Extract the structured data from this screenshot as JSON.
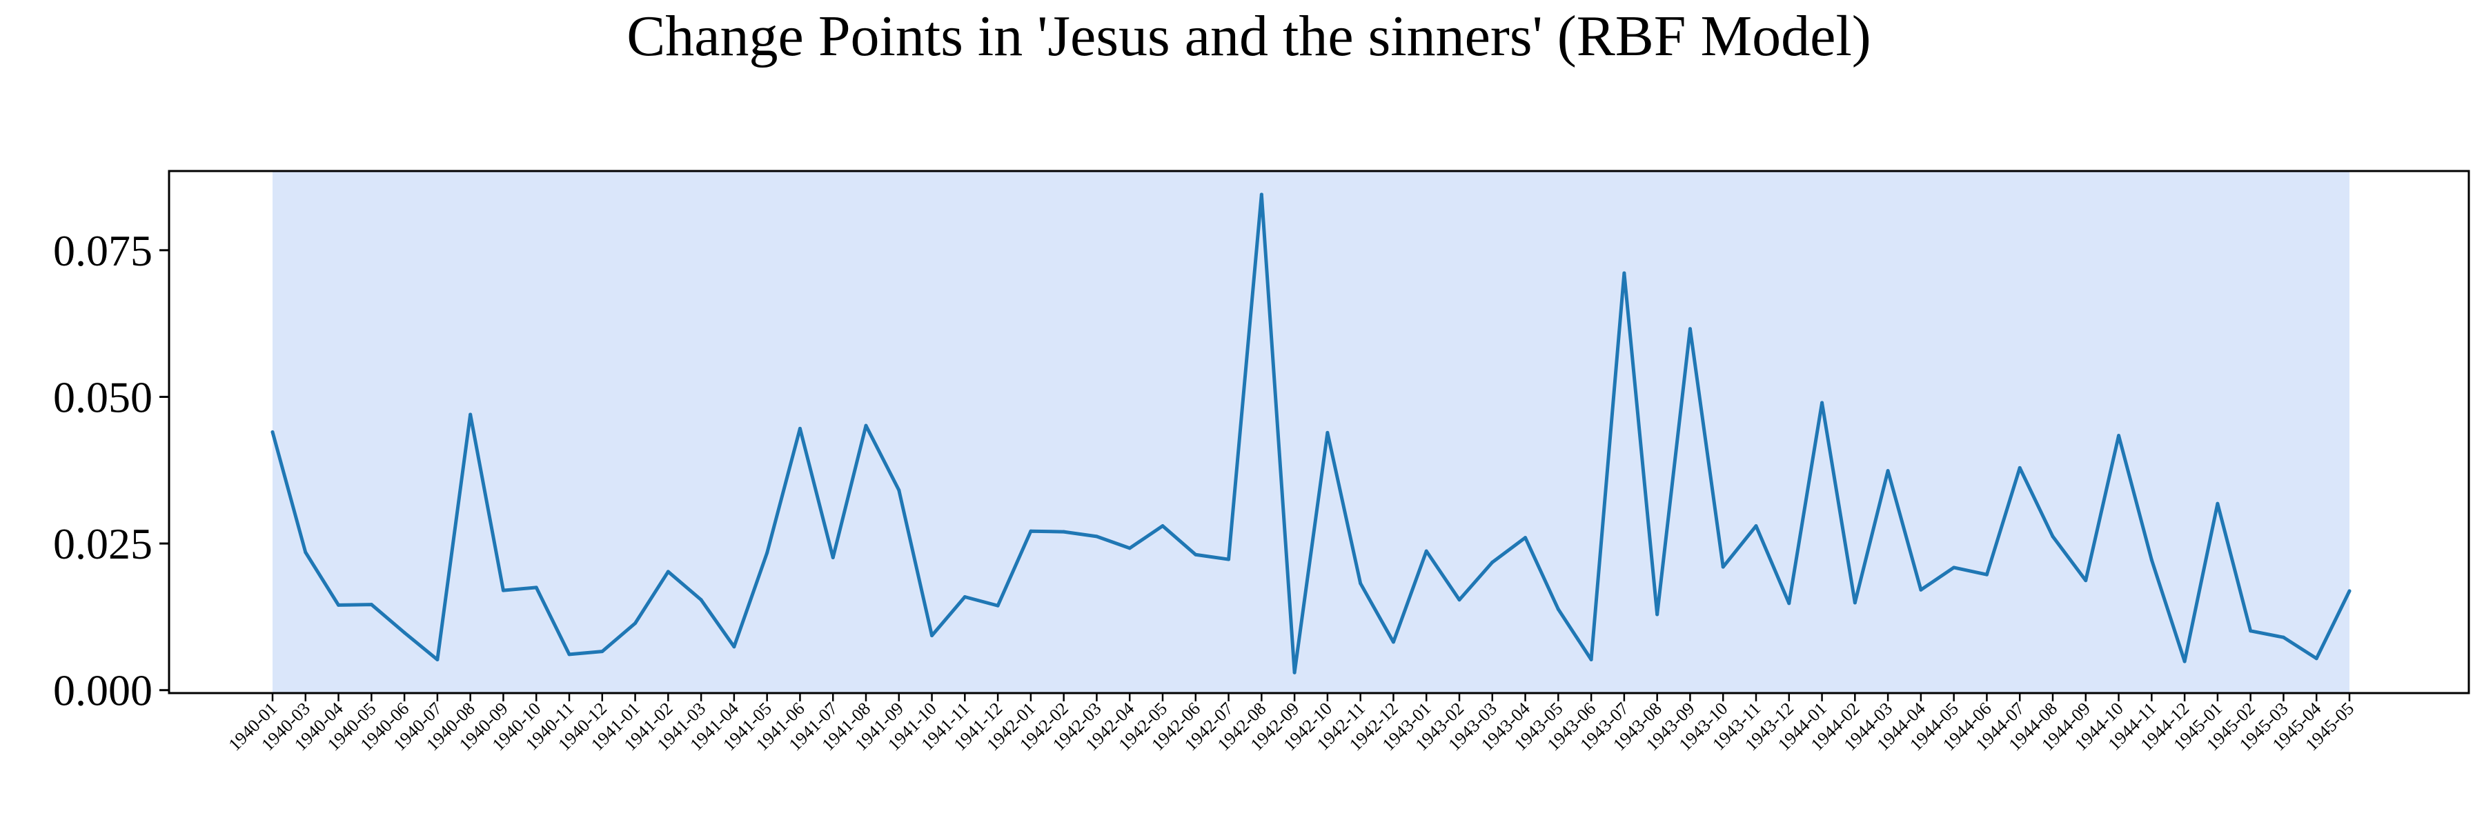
{
  "chart_data": {
    "type": "line",
    "title": "Change Points in 'Jesus and the sinners' (RBF Model)",
    "xlabel": "",
    "ylabel": "",
    "ylim": [
      -0.0005,
      0.0885
    ],
    "yticks": [
      "0.000",
      "0.025",
      "0.050",
      "0.075"
    ],
    "ytick_values": [
      0.0,
      0.025,
      0.05,
      0.075
    ],
    "grid": false,
    "line_color": "#1f77b4",
    "shade_color": "#dae6fa",
    "shaded_region": [
      "1940-01",
      "1945-05"
    ],
    "categories": [
      "1940-01",
      "1940-03",
      "1940-04",
      "1940-05",
      "1940-06",
      "1940-07",
      "1940-08",
      "1940-09",
      "1940-10",
      "1940-11",
      "1940-12",
      "1941-01",
      "1941-02",
      "1941-03",
      "1941-04",
      "1941-05",
      "1941-06",
      "1941-07",
      "1941-08",
      "1941-09",
      "1941-10",
      "1941-11",
      "1941-12",
      "1942-01",
      "1942-02",
      "1942-03",
      "1942-04",
      "1942-05",
      "1942-06",
      "1942-07",
      "1942-08",
      "1942-09",
      "1942-10",
      "1942-11",
      "1942-12",
      "1943-01",
      "1943-02",
      "1943-03",
      "1943-04",
      "1943-05",
      "1943-06",
      "1943-07",
      "1943-08",
      "1943-09",
      "1943-10",
      "1943-11",
      "1943-12",
      "1944-01",
      "1944-02",
      "1944-03",
      "1944-04",
      "1944-05",
      "1944-06",
      "1944-07",
      "1944-08",
      "1944-09",
      "1944-10",
      "1944-11",
      "1944-12",
      "1945-01",
      "1945-02",
      "1945-03",
      "1945-04",
      "1945-05"
    ],
    "values": [
      0.044,
      0.0235,
      0.0145,
      0.0146,
      0.0098,
      0.0052,
      0.047,
      0.017,
      0.0175,
      0.0061,
      0.0066,
      0.0114,
      0.0202,
      0.0154,
      0.0074,
      0.0234,
      0.0446,
      0.0226,
      0.0451,
      0.0341,
      0.0093,
      0.0159,
      0.0144,
      0.0271,
      0.027,
      0.0262,
      0.0242,
      0.028,
      0.0231,
      0.0223,
      0.0845,
      0.003,
      0.0439,
      0.0182,
      0.0082,
      0.0237,
      0.0154,
      0.0218,
      0.026,
      0.0138,
      0.0052,
      0.0711,
      0.0129,
      0.0616,
      0.021,
      0.028,
      0.0148,
      0.049,
      0.0149,
      0.0374,
      0.0171,
      0.0209,
      0.0197,
      0.0379,
      0.0262,
      0.0187,
      0.0434,
      0.0222,
      0.0049,
      0.0318,
      0.0101,
      0.009,
      0.0054,
      0.0169
    ]
  }
}
